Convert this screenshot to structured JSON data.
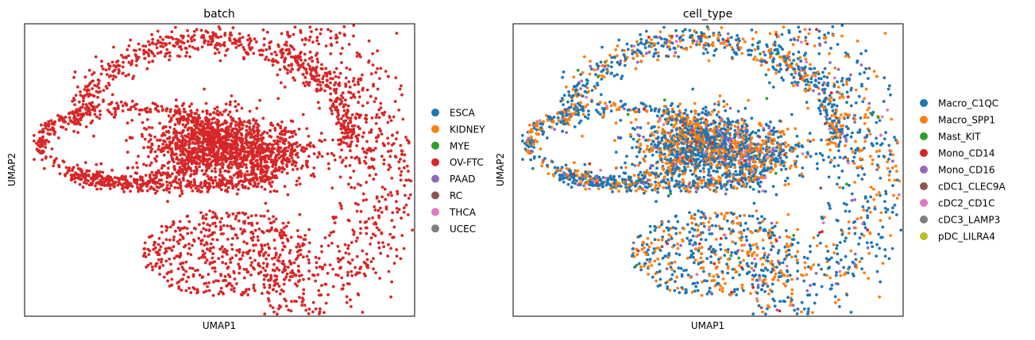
{
  "chart_data": [
    {
      "type": "scatter",
      "title": "batch",
      "xlabel": "UMAP1",
      "ylabel": "UMAP2",
      "xticks": "none",
      "yticks": "none",
      "grid": false,
      "legend_placement": "right-outside",
      "legend": [
        {
          "name": "ESCA",
          "color": "#1f77b4"
        },
        {
          "name": "KIDNEY",
          "color": "#ff7f0e"
        },
        {
          "name": "MYE",
          "color": "#2ca02c"
        },
        {
          "name": "OV-FTC",
          "color": "#d62728"
        },
        {
          "name": "PAAD",
          "color": "#9467bd"
        },
        {
          "name": "RC",
          "color": "#8c564b"
        },
        {
          "name": "THCA",
          "color": "#e377c2"
        },
        {
          "name": "UCEC",
          "color": "#7f7f7f"
        }
      ],
      "point_composition": [
        {
          "category": "OV-FTC",
          "fraction": 1.0
        }
      ]
    },
    {
      "type": "scatter",
      "title": "cell_type",
      "xlabel": "UMAP1",
      "ylabel": "UMAP2",
      "xticks": "none",
      "yticks": "none",
      "grid": false,
      "legend_placement": "right-outside",
      "legend": [
        {
          "name": "Macro_C1QC",
          "color": "#1f77b4"
        },
        {
          "name": "Macro_SPP1",
          "color": "#ff7f0e"
        },
        {
          "name": "Mast_KIT",
          "color": "#2ca02c"
        },
        {
          "name": "Mono_CD14",
          "color": "#d62728"
        },
        {
          "name": "Mono_CD16",
          "color": "#9467bd"
        },
        {
          "name": "cDC1_CLEC9A",
          "color": "#8c564b"
        },
        {
          "name": "cDC2_CD1C",
          "color": "#e377c2"
        },
        {
          "name": "cDC3_LAMP3",
          "color": "#7f7f7f"
        },
        {
          "name": "pDC_LILRA4",
          "color": "#bcbd22"
        }
      ],
      "point_composition": [
        {
          "category": "Macro_C1QC",
          "fraction": 0.54
        },
        {
          "category": "Macro_SPP1",
          "fraction": 0.36
        },
        {
          "category": "Mono_CD16",
          "fraction": 0.05
        },
        {
          "category": "cDC2_CD1C",
          "fraction": 0.02
        },
        {
          "category": "Mono_CD14",
          "fraction": 0.015
        },
        {
          "category": "cDC1_CLEC9A",
          "fraction": 0.008
        },
        {
          "category": "Mast_KIT",
          "fraction": 0.007
        }
      ]
    }
  ]
}
